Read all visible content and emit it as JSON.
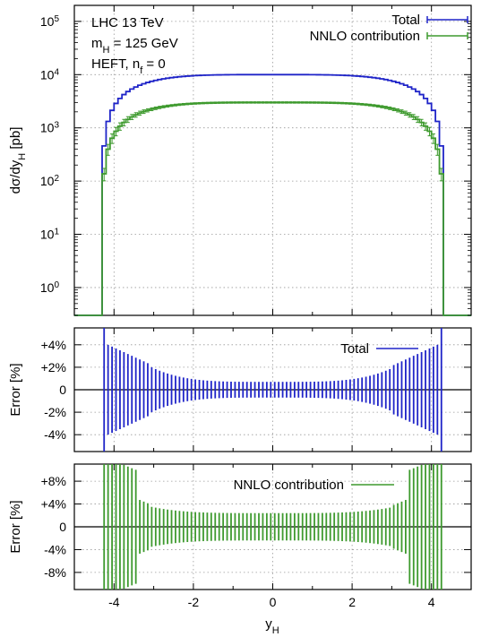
{
  "chart_data": {
    "type": "line",
    "x_label": "y_H",
    "x_ticks": [
      "-4",
      "-2",
      "0",
      "2",
      "4"
    ],
    "x_range": [
      -5,
      5
    ],
    "bin_width": 0.1,
    "y_max": 4.3,
    "colors": {
      "total": "#1f24c8",
      "nnlo": "#3e9a2e",
      "grid": "#999999"
    },
    "panels": [
      {
        "id": "main",
        "type": "line",
        "y_label": "dσ/dy_H [pb]",
        "y_log": true,
        "y_range": [
          0.3,
          200000
        ],
        "y_ticks": [
          {
            "value": 1,
            "base": "10",
            "exp": "0"
          },
          {
            "value": 10,
            "base": "10",
            "exp": "1"
          },
          {
            "value": 100,
            "base": "10",
            "exp": "2"
          },
          {
            "value": 1000,
            "base": "10",
            "exp": "3"
          },
          {
            "value": 10000,
            "base": "10",
            "exp": "4"
          },
          {
            "value": 100000,
            "base": "10",
            "exp": "5"
          }
        ],
        "annotations": [
          "LHC 13 TeV",
          "m_H = 125 GeV",
          "HEFT, n_f = 0"
        ],
        "series": [
          {
            "name": "Total",
            "key": "total",
            "peak": 10000,
            "edge": 1.0,
            "shape": "1 - (|y|/4.3)^4"
          },
          {
            "name": "NNLO contribution",
            "key": "nnlo",
            "peak": 3000,
            "edge": 0.55,
            "shape": "1 - (|y|/4.3)^4"
          }
        ]
      },
      {
        "id": "err_total",
        "type": "bar",
        "y_label": "Error [%]",
        "y_range": [
          -5.5,
          5.5
        ],
        "y_ticks": [
          "-4%",
          "-2%",
          "0",
          "+2%",
          "+4%"
        ],
        "y_tick_values": [
          -4,
          -2,
          0,
          2,
          4
        ],
        "series": [
          {
            "name": "Total",
            "key": "total",
            "center_error_pct": 0.7,
            "edge_error_pct": 4.0,
            "outer_error_pct": 6.0
          }
        ]
      },
      {
        "id": "err_nnlo",
        "type": "bar",
        "y_label": "Error [%]",
        "y_range": [
          -11,
          11
        ],
        "y_ticks": [
          "-8%",
          "-4%",
          "0",
          "+4%",
          "+8%"
        ],
        "y_tick_values": [
          -8,
          -4,
          0,
          4,
          8
        ],
        "series": [
          {
            "name": "NNLO contribution",
            "key": "nnlo",
            "center_error_pct": 2.4,
            "edge_error_pct": 7.0,
            "outer_error_pct": 12.0
          }
        ]
      }
    ]
  }
}
